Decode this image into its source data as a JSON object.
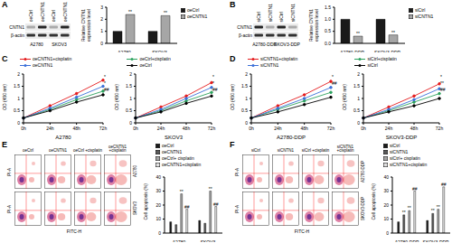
{
  "blots": [
    {
      "panel": "A",
      "lanes": [
        "oeCtrl",
        "oeCNTN1",
        "oeCtrl",
        "oeCNTN1"
      ],
      "rows": [
        "CNTN1",
        "β-actin"
      ],
      "groups": [
        "A2780",
        "SKOV3"
      ]
    },
    {
      "panel": "B",
      "lanes": [
        "siCtrl",
        "siCNTN1",
        "siCtrl",
        "siCNTN1"
      ],
      "rows": [
        "CNTN1",
        "β-actin"
      ],
      "groups": [
        "A2780-DDP",
        "SKOV3-DDP"
      ]
    }
  ],
  "chart_data": [
    {
      "type": "bar",
      "ylabel": "Relative CNTN1 expression level",
      "categories": [
        "A2780",
        "SKOV3"
      ],
      "series": [
        {
          "name": "oeCtrl",
          "color": "#1a1a1a",
          "values": [
            1,
            1
          ]
        },
        {
          "name": "oeCNTN1",
          "color": "#a6a6a6",
          "values": [
            2.4,
            2.3
          ],
          "annotations": [
            "**",
            "**"
          ]
        }
      ],
      "ylim": [
        0,
        3
      ],
      "yticks": [
        0,
        1,
        2,
        3
      ]
    },
    {
      "type": "bar",
      "ylabel": "Relative CNTN1 expression level",
      "categories": [
        "A2780-DDP",
        "SKOV3-DDP"
      ],
      "series": [
        {
          "name": "siCtrl",
          "color": "#1a1a1a",
          "values": [
            1,
            1
          ]
        },
        {
          "name": "siCNTN1",
          "color": "#a6a6a6",
          "values": [
            0.3,
            0.35
          ],
          "annotations": [
            "**",
            "**"
          ]
        }
      ],
      "ylim": [
        0,
        1.5
      ],
      "yticks": [
        {
          "value": 0,
          "label": "0.0"
        },
        0.5,
        {
          "value": 1,
          "label": "1.0"
        },
        1.5
      ]
    },
    {
      "panel": "C",
      "type": "line",
      "xlabel": "A2780",
      "ylabel": "OD (450 nm)",
      "categories": [
        "0h",
        "24h",
        "48h",
        "72h"
      ],
      "ylim": [
        0,
        2
      ],
      "yticks": [
        0,
        0.5,
        1,
        1.5,
        2
      ],
      "annotations": [
        "*",
        "*",
        "##"
      ],
      "series": [
        {
          "name": "oeCNTN1+cisplatin",
          "color": "#e41a1c",
          "values": [
            0.2,
            0.7,
            1.2,
            1.75
          ]
        },
        {
          "name": "oeCtrl+cisplatin",
          "color": "#2ca25f",
          "values": [
            0.2,
            0.55,
            0.95,
            1.3
          ]
        },
        {
          "name": "oeCNTN1",
          "color": "#3a6fd8",
          "values": [
            0.2,
            0.6,
            1.05,
            1.5
          ]
        },
        {
          "name": "oeCtrl",
          "color": "#000000",
          "values": [
            0.2,
            0.5,
            0.85,
            1.15
          ]
        }
      ]
    },
    {
      "type": "line",
      "xlabel": "SKOV3",
      "ylabel": "OD (450 nm)",
      "categories": [
        "0h",
        "24h",
        "48h",
        "72h"
      ],
      "ylim": [
        0,
        2
      ],
      "yticks": [
        0,
        0.5,
        1,
        1.5,
        2
      ],
      "annotations": [
        "*",
        "*",
        "##"
      ],
      "series": [
        {
          "name": "oeCNTN1+cisplatin",
          "color": "#e41a1c",
          "values": [
            0.2,
            0.65,
            1.1,
            1.65
          ]
        },
        {
          "name": "oeCtrl+cisplatin",
          "color": "#2ca25f",
          "values": [
            0.2,
            0.5,
            0.9,
            1.25
          ]
        },
        {
          "name": "oeCNTN1",
          "color": "#3a6fd8",
          "values": [
            0.2,
            0.55,
            1.0,
            1.45
          ]
        },
        {
          "name": "oeCtrl",
          "color": "#000000",
          "values": [
            0.2,
            0.45,
            0.8,
            1.1
          ]
        }
      ]
    },
    {
      "panel": "D",
      "type": "line",
      "xlabel": "A2780-DDP",
      "ylabel": "OD (450 nm)",
      "categories": [
        "0h",
        "24h",
        "48h",
        "72h"
      ],
      "ylim": [
        0,
        2
      ],
      "yticks": [
        0,
        0.5,
        1,
        1.5,
        2
      ],
      "annotations": [
        "*",
        "##"
      ],
      "series": [
        {
          "name": "siCNTN1+cisplatin",
          "color": "#e41a1c",
          "values": [
            0.2,
            0.7,
            1.15,
            1.7
          ]
        },
        {
          "name": "siCtrl+cisplatin",
          "color": "#2ca25f",
          "values": [
            0.2,
            0.55,
            0.9,
            1.25
          ]
        },
        {
          "name": "siCNTN1",
          "color": "#3a6fd8",
          "values": [
            0.2,
            0.6,
            1.0,
            1.45
          ]
        },
        {
          "name": "siCtrl",
          "color": "#000000",
          "values": [
            0.2,
            0.45,
            0.75,
            1.05
          ]
        }
      ]
    },
    {
      "type": "line",
      "xlabel": "SKOV3-DDP",
      "ylabel": "OD (450 nm)",
      "categories": [
        "0h",
        "24h",
        "48h",
        "72h"
      ],
      "ylim": [
        0,
        2
      ],
      "yticks": [
        0,
        0.5,
        1,
        1.5,
        2
      ],
      "annotations": [
        "*",
        "**",
        "##"
      ],
      "series": [
        {
          "name": "siCNTN1+cisplatin",
          "color": "#e41a1c",
          "values": [
            0.2,
            0.65,
            1.1,
            1.6
          ]
        },
        {
          "name": "siCtrl+cisplatin",
          "color": "#2ca25f",
          "values": [
            0.2,
            0.5,
            0.85,
            1.2
          ]
        },
        {
          "name": "siCNTN1",
          "color": "#3a6fd8",
          "values": [
            0.2,
            0.55,
            0.95,
            1.4
          ]
        },
        {
          "name": "siCtrl",
          "color": "#000000",
          "values": [
            0.2,
            0.45,
            0.7,
            1.0
          ]
        }
      ]
    },
    {
      "type": "bar",
      "ylabel": "Cell apoptosis (%)",
      "categories": [
        "A2780",
        "SKOV3"
      ],
      "series": [
        {
          "name": "oeCtrl",
          "color": "#1a1a1a",
          "values": [
            8,
            9
          ]
        },
        {
          "name": "oeCNTN1",
          "color": "#595959",
          "values": [
            6,
            7
          ]
        },
        {
          "name": "oeCtrl+ cisplatin",
          "color": "#a6a6a6",
          "values": [
            28,
            30
          ],
          "annotations": [
            "**",
            "**"
          ]
        },
        {
          "name": "oeCNTN1+cisplatin",
          "color": "#e0e0e0",
          "values": [
            17,
            19
          ],
          "annotations": [
            "##",
            "##"
          ]
        }
      ],
      "ylim": [
        0,
        40
      ],
      "yticks": [
        0,
        10,
        20,
        30,
        40
      ]
    },
    {
      "type": "bar",
      "ylabel": "Cell apoptosis (%)",
      "categories": [
        "A2780-DDP",
        "SKOV3-DDP"
      ],
      "series": [
        {
          "name": "siCtrl",
          "color": "#1a1a1a",
          "values": [
            8,
            9
          ]
        },
        {
          "name": "siCNTN1",
          "color": "#595959",
          "values": [
            13,
            14
          ],
          "annotations": [
            "**",
            "**"
          ]
        },
        {
          "name": "siCtrl+ cisplatin",
          "color": "#a6a6a6",
          "values": [
            16,
            17
          ],
          "annotations": [
            "**",
            "**"
          ]
        },
        {
          "name": "siCNTN1+cisplatin",
          "color": "#e0e0e0",
          "values": [
            30,
            33
          ],
          "annotations": [
            "##",
            "##"
          ]
        }
      ],
      "ylim": [
        0,
        40
      ],
      "yticks": [
        0,
        10,
        20,
        30,
        40
      ]
    }
  ],
  "flow": [
    {
      "panel": "E",
      "columns": [
        "oeCtrl",
        "oeCNTN1",
        "oeCtrl +cisplatin",
        "oeCNTN1 +cisplatin"
      ],
      "rows": [
        "A2780",
        "SKOV3"
      ],
      "xlabel": "FITC-H",
      "ylabel": "PI-A"
    },
    {
      "panel": "F",
      "columns": [
        "siCtrl",
        "siCNTN1",
        "siCtrl +cisplatin",
        "siCNTN1 +cisplatin"
      ],
      "rows": [
        "A2780-DDP",
        "SKOV3-DDP"
      ],
      "xlabel": "FITC-H",
      "ylabel": "PI-A"
    }
  ]
}
